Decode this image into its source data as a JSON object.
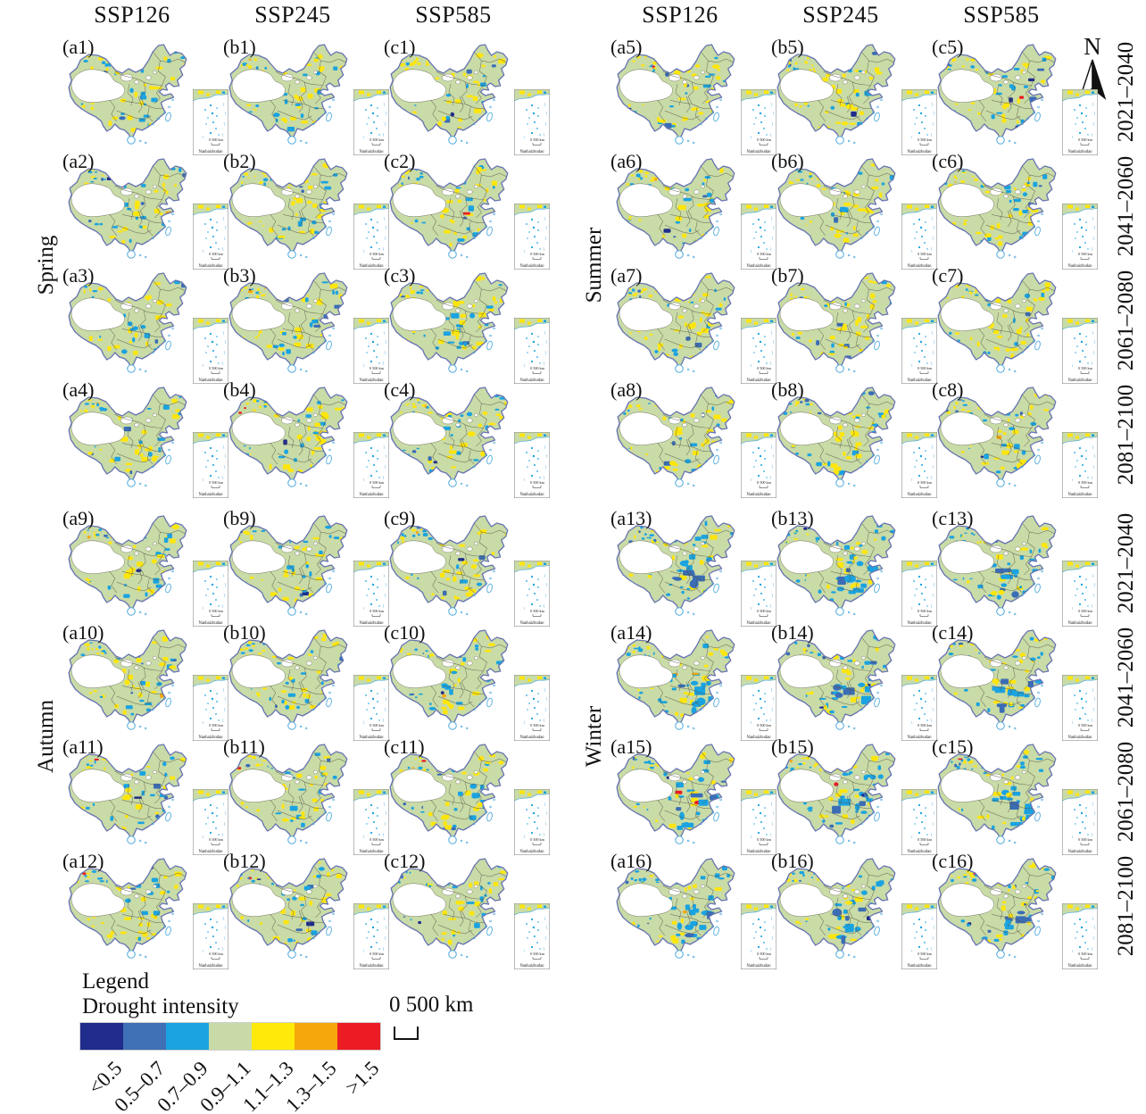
{
  "scenarios": [
    "SSP126",
    "SSP245",
    "SSP585"
  ],
  "periods": [
    "2021–2040",
    "2041–2060",
    "2061–2080",
    "2081–2100"
  ],
  "north_label": "N",
  "quadrants": [
    {
      "season": "Spring",
      "panels": [
        [
          "(a1)",
          "(b1)",
          "(c1)"
        ],
        [
          "(a2)",
          "(b2)",
          "(c2)"
        ],
        [
          "(a3)",
          "(b3)",
          "(c3)"
        ],
        [
          "(a4)",
          "(b4)",
          "(c4)"
        ]
      ]
    },
    {
      "season": "Summer",
      "panels": [
        [
          "(a5)",
          "(b5)",
          "(c5)"
        ],
        [
          "(a6)",
          "(b6)",
          "(c6)"
        ],
        [
          "(a7)",
          "(b7)",
          "(c7)"
        ],
        [
          "(a8)",
          "(b8)",
          "(c8)"
        ]
      ]
    },
    {
      "season": "Autumn",
      "panels": [
        [
          "(a9)",
          "(b9)",
          "(c9)"
        ],
        [
          "(a10)",
          "(b10)",
          "(c10)"
        ],
        [
          "(a11)",
          "(b11)",
          "(c11)"
        ],
        [
          "(a12)",
          "(b12)",
          "(c12)"
        ]
      ]
    },
    {
      "season": "Winter",
      "panels": [
        [
          "(a13)",
          "(b13)",
          "(c13)"
        ],
        [
          "(a14)",
          "(b14)",
          "(c14)"
        ],
        [
          "(a15)",
          "(b15)",
          "(c15)"
        ],
        [
          "(a16)",
          "(b16)",
          "(c16)"
        ]
      ]
    }
  ],
  "map_inset": {
    "label": "Nanhaizhudao",
    "scale_text": "0 500 km"
  },
  "legend": {
    "title": "Legend",
    "subtitle": "Drought intensity",
    "scale_text": "0 500 km",
    "classes": [
      {
        "label": "<0.5",
        "color": "#202c8c"
      },
      {
        "label": "0.5–0.7",
        "color": "#3f6fb5"
      },
      {
        "label": "0.7–0.9",
        "color": "#1aa3e0"
      },
      {
        "label": "0.9–1.1",
        "color": "#c8dba6"
      },
      {
        "label": "1.1–1.3",
        "color": "#ffe90a"
      },
      {
        "label": "1.3–1.5",
        "color": "#f6a70b"
      },
      {
        "label": ">1.5",
        "color": "#eb1c24"
      }
    ]
  },
  "map_colors": {
    "land_fill": "#c9dba6",
    "no_data": "#ffffff",
    "country_border": "#6673b1",
    "province_border": "#55544a",
    "coast_island": "#3ea2d9",
    "patch_yellow": "#ffe60a",
    "patch_cyan": "#1aa3e0",
    "patch_blue": "#3a6db6",
    "patch_navy": "#202c8c",
    "patch_orange": "#f6a70b",
    "patch_red": "#eb1c24"
  }
}
